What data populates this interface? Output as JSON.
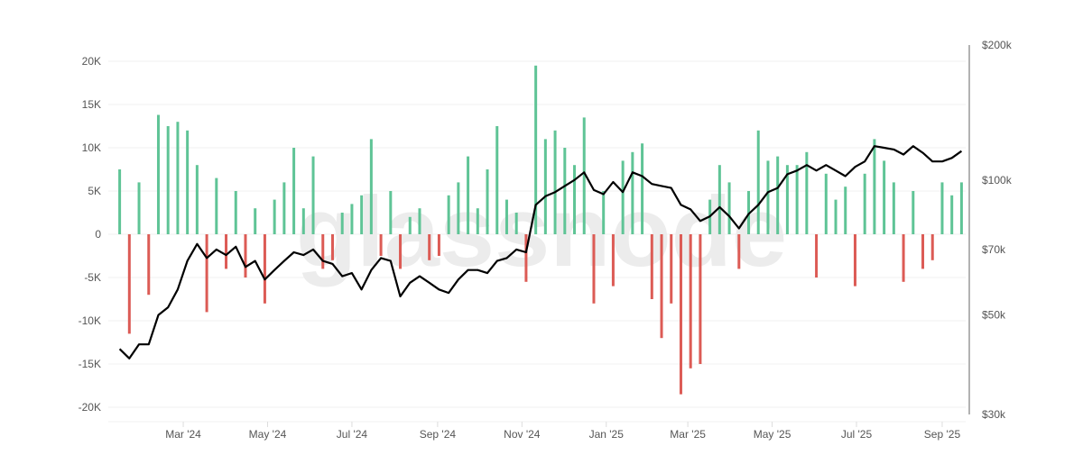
{
  "watermark": "glassnode",
  "chart_data": {
    "type": "bar",
    "colors": {
      "positive": "#5fc496",
      "negative": "#dc5b55",
      "price_line": "#000000",
      "grid": "#f0f0f0",
      "axis": "#999999"
    },
    "left_axis": {
      "ylim": [
        -20000,
        20000
      ],
      "ticks": [
        -20000,
        -15000,
        -10000,
        -5000,
        0,
        5000,
        10000,
        15000,
        20000
      ],
      "tick_labels": [
        "-20K",
        "-15K",
        "-10K",
        "-5K",
        "0",
        "5K",
        "10K",
        "15K",
        "20K"
      ]
    },
    "right_axis": {
      "scale": "log",
      "ylim": [
        30000,
        200000
      ],
      "ticks": [
        30000,
        50000,
        70000,
        100000,
        200000
      ],
      "tick_labels": [
        "$30k",
        "$50k",
        "$70k",
        "$100k",
        "$200k"
      ]
    },
    "x_axis": {
      "range": [
        "2024-01-12",
        "2025-09-18"
      ],
      "ticks": [
        "2024-03-01",
        "2024-05-01",
        "2024-07-01",
        "2024-09-01",
        "2024-11-01",
        "2025-01-01",
        "2025-03-01",
        "2025-05-01",
        "2025-07-01",
        "2025-09-01"
      ],
      "tick_labels": [
        "Mar '24",
        "May '24",
        "Jul '24",
        "Sep '24",
        "Nov '24",
        "Jan '25",
        "Mar '25",
        "May '25",
        "Jul '25",
        "Sep '25"
      ]
    },
    "dates": [
      "2024-01-15",
      "2024-01-22",
      "2024-01-29",
      "2024-02-05",
      "2024-02-12",
      "2024-02-19",
      "2024-02-26",
      "2024-03-04",
      "2024-03-11",
      "2024-03-18",
      "2024-03-25",
      "2024-04-01",
      "2024-04-08",
      "2024-04-15",
      "2024-04-22",
      "2024-04-29",
      "2024-05-06",
      "2024-05-13",
      "2024-05-20",
      "2024-05-27",
      "2024-06-03",
      "2024-06-10",
      "2024-06-17",
      "2024-06-24",
      "2024-07-01",
      "2024-07-08",
      "2024-07-15",
      "2024-07-22",
      "2024-07-29",
      "2024-08-05",
      "2024-08-12",
      "2024-08-19",
      "2024-08-26",
      "2024-09-02",
      "2024-09-09",
      "2024-09-16",
      "2024-09-23",
      "2024-09-30",
      "2024-10-07",
      "2024-10-14",
      "2024-10-21",
      "2024-10-28",
      "2024-11-04",
      "2024-11-11",
      "2024-11-18",
      "2024-11-25",
      "2024-12-02",
      "2024-12-09",
      "2024-12-16",
      "2024-12-23",
      "2024-12-30",
      "2025-01-06",
      "2025-01-13",
      "2025-01-20",
      "2025-01-27",
      "2025-02-03",
      "2025-02-10",
      "2025-02-17",
      "2025-02-24",
      "2025-03-03",
      "2025-03-10",
      "2025-03-17",
      "2025-03-24",
      "2025-03-31",
      "2025-04-07",
      "2025-04-14",
      "2025-04-21",
      "2025-04-28",
      "2025-05-05",
      "2025-05-12",
      "2025-05-19",
      "2025-05-26",
      "2025-06-02",
      "2025-06-09",
      "2025-06-16",
      "2025-06-23",
      "2025-06-30",
      "2025-07-07",
      "2025-07-14",
      "2025-07-21",
      "2025-07-28",
      "2025-08-04",
      "2025-08-11",
      "2025-08-18",
      "2025-08-25",
      "2025-09-01",
      "2025-09-08",
      "2025-09-15"
    ],
    "net_flow": [
      7500,
      -11500,
      6000,
      -7000,
      13800,
      12500,
      13000,
      12000,
      8000,
      -9000,
      6500,
      -4000,
      5000,
      -5000,
      3000,
      -8000,
      4000,
      6000,
      10000,
      3000,
      9000,
      -4000,
      -3000,
      2500,
      3500,
      4500,
      11000,
      -2500,
      5000,
      -4000,
      2000,
      3000,
      -3000,
      -2500,
      4500,
      6000,
      9000,
      3000,
      7500,
      12500,
      4000,
      2500,
      -5500,
      19500,
      11000,
      12000,
      10000,
      8000,
      13500,
      -8000,
      5000,
      -6000,
      8500,
      9500,
      10500,
      -7500,
      -12000,
      -8000,
      -18500,
      -15500,
      -15000,
      4000,
      8000,
      6000,
      -4000,
      5000,
      12000,
      8500,
      9000,
      8000,
      8000,
      9500,
      -5000,
      7000,
      4000,
      5500,
      -6000,
      7000,
      11000,
      8500,
      6000,
      -5500,
      5000,
      -4000,
      -3000,
      6000,
      4500,
      6000
    ],
    "price": [
      42000,
      40000,
      43000,
      43000,
      50000,
      52000,
      57000,
      66000,
      72000,
      67000,
      70000,
      68000,
      71000,
      64000,
      66000,
      60000,
      63000,
      66000,
      69000,
      68000,
      70000,
      66000,
      65000,
      61000,
      62000,
      57000,
      63000,
      67000,
      66000,
      55000,
      59000,
      61000,
      59000,
      57000,
      56000,
      60000,
      63000,
      63000,
      62000,
      66000,
      67000,
      70000,
      69000,
      88000,
      92000,
      94000,
      97000,
      100000,
      104000,
      95000,
      93000,
      99000,
      94000,
      104000,
      102000,
      98000,
      97000,
      96000,
      88000,
      86000,
      81000,
      83000,
      87000,
      83000,
      78000,
      84000,
      88000,
      94000,
      96000,
      103000,
      105000,
      108000,
      105000,
      108000,
      105000,
      102000,
      107000,
      110000,
      119000,
      118000,
      117000,
      114000,
      119000,
      115000,
      110000,
      110000,
      112000,
      116000
    ]
  }
}
